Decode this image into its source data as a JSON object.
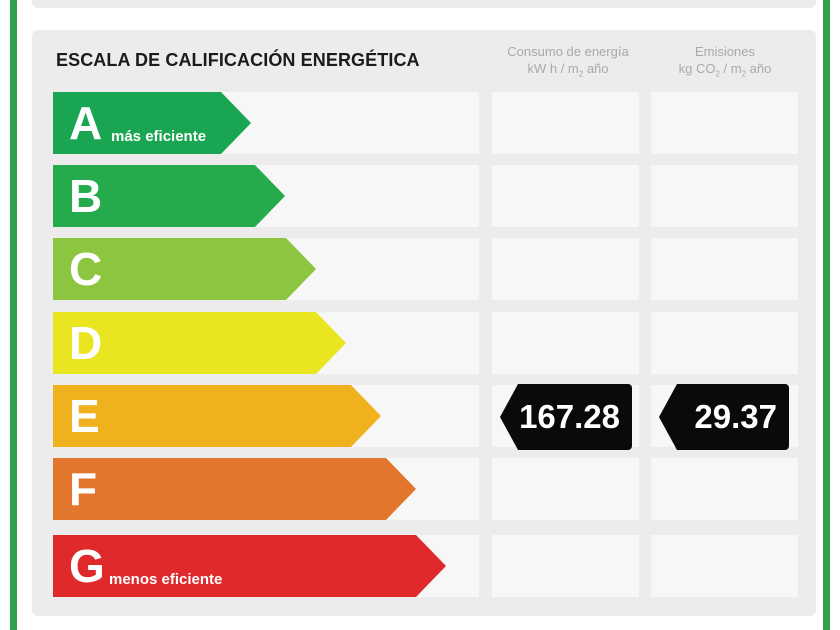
{
  "title": "ESCALA DE CALIFICACIÓN ENERGÉTICA",
  "columns": {
    "consumo": {
      "line1": "Consumo de energía",
      "line2a": "kW h / m",
      "line2sub": "2",
      "line2b": " año"
    },
    "emisiones": {
      "line1": "Emisiones",
      "line2a": "kg CO",
      "line2sub": "2",
      "line2b": " / m",
      "line2sub2": "2",
      "line2c": " año"
    }
  },
  "ratings": [
    {
      "letter": "A",
      "sublabel": "más eficiente",
      "color": "#1aa552"
    },
    {
      "letter": "B",
      "sublabel": "",
      "color": "#25ab4b"
    },
    {
      "letter": "C",
      "sublabel": "",
      "color": "#8cc53f"
    },
    {
      "letter": "D",
      "sublabel": "",
      "color": "#e9e621"
    },
    {
      "letter": "E",
      "sublabel": "",
      "color": "#efb21e"
    },
    {
      "letter": "F",
      "sublabel": "",
      "color": "#e2762c"
    },
    {
      "letter": "G",
      "sublabel": "menos eficiente",
      "color": "#e0292a"
    }
  ],
  "current": {
    "rating": "E",
    "consumo": "167.28",
    "emisiones": "29.37"
  },
  "frame_color": "#2fa24b"
}
